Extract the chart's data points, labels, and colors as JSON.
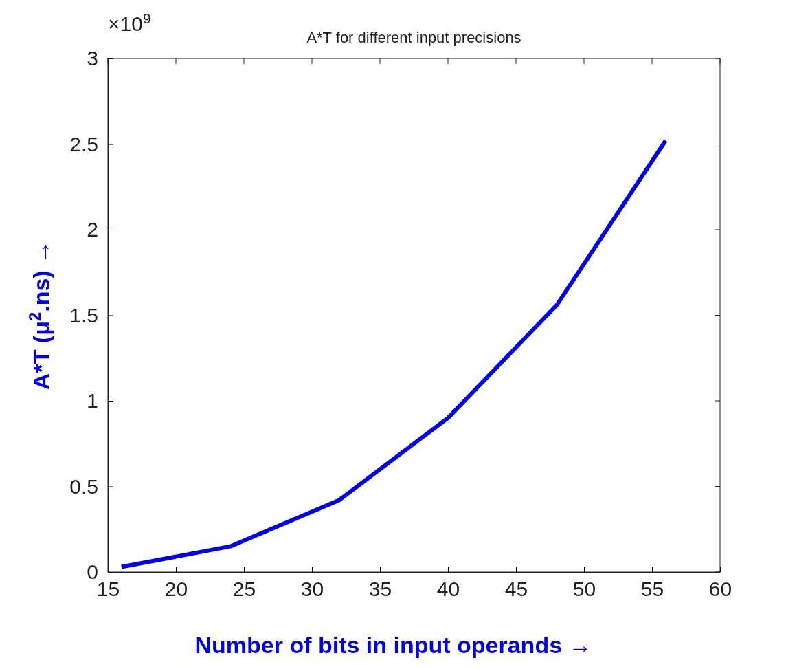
{
  "chart_data": {
    "type": "line",
    "title": "A*T for different input precisions",
    "xlabel": "Number of bits in input operands    →",
    "ylabel": "A*T (μ$^{2}$.ns)      →",
    "annotations": [
      "×10$^{9}$"
    ],
    "x": [
      16,
      24,
      32,
      40,
      48,
      56
    ],
    "series": [
      {
        "color": "#0000ee",
        "values": [
          0.03,
          0.15,
          0.42,
          0.9,
          1.56,
          2.52
        ]
      }
    ],
    "xlim": [
      15,
      60
    ],
    "xticks": [
      15,
      20,
      25,
      30,
      35,
      40,
      45,
      50,
      55,
      60
    ],
    "ylim": [
      0,
      3
    ],
    "yticks": [
      0,
      0.5,
      1,
      1.5,
      2,
      2.5,
      3
    ],
    "grid": false,
    "line_style": "solid"
  }
}
